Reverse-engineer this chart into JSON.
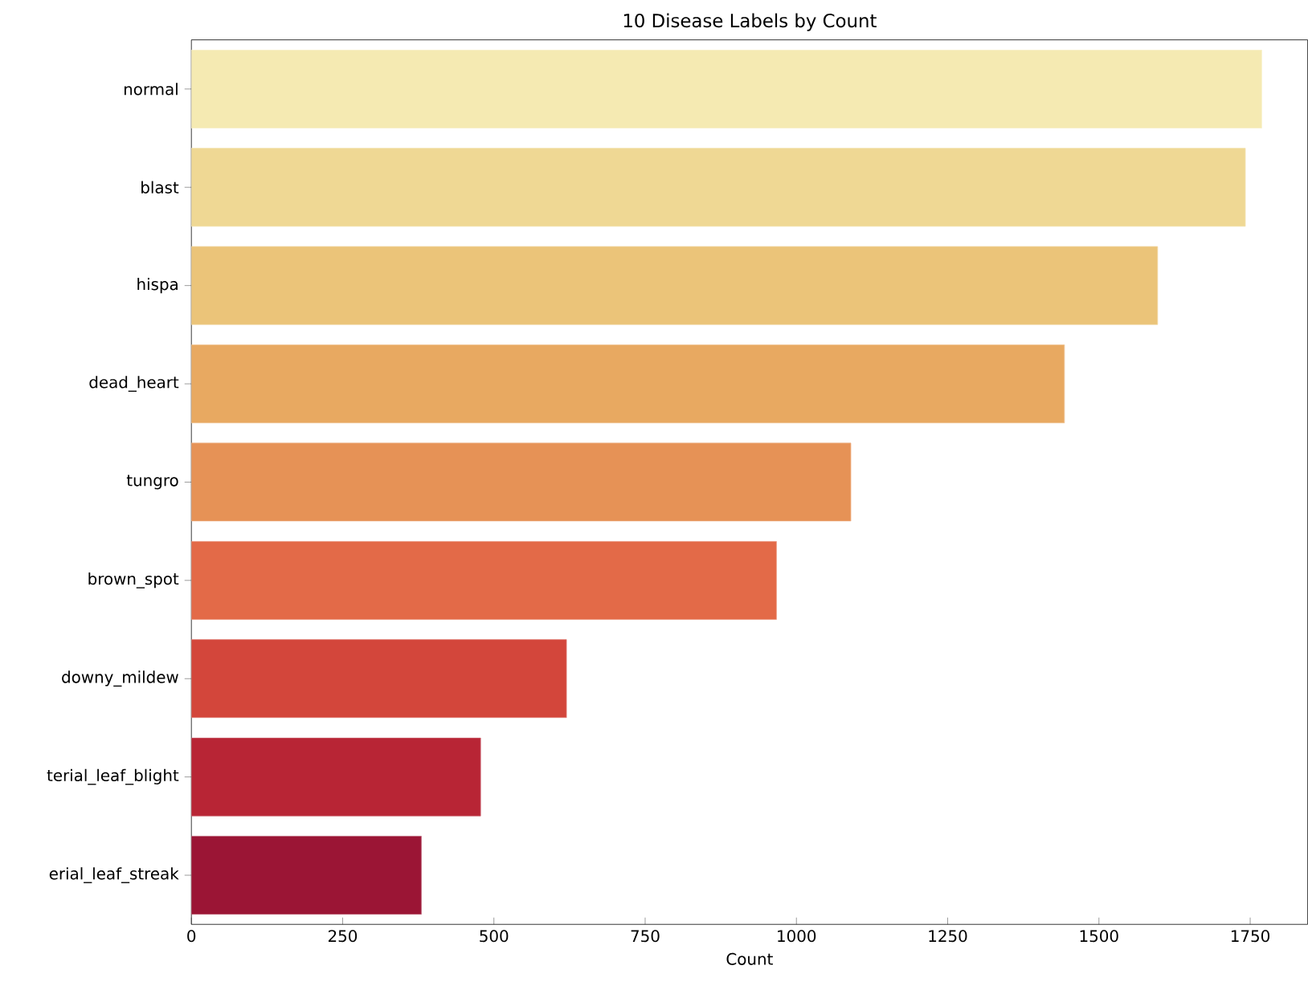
{
  "chart_data": {
    "type": "bar",
    "orientation": "horizontal",
    "title": "10 Disease Labels by Count",
    "xlabel": "Count",
    "categories": [
      "normal",
      "blast",
      "hispa",
      "dead_heart",
      "tungro",
      "brown_spot",
      "downy_mildew",
      "terial_leaf_blight",
      "erial_leaf_streak"
    ],
    "values": [
      1769,
      1742,
      1597,
      1443,
      1090,
      967,
      620,
      478,
      380
    ],
    "colors": [
      "#f5eab2",
      "#efd894",
      "#ebc479",
      "#e8a961",
      "#e69256",
      "#e36a48",
      "#d3463b",
      "#b82535",
      "#9b1535"
    ],
    "xlim": [
      0,
      1845
    ],
    "xticks": [
      0,
      250,
      500,
      750,
      1000,
      1250,
      1500,
      1750
    ]
  }
}
